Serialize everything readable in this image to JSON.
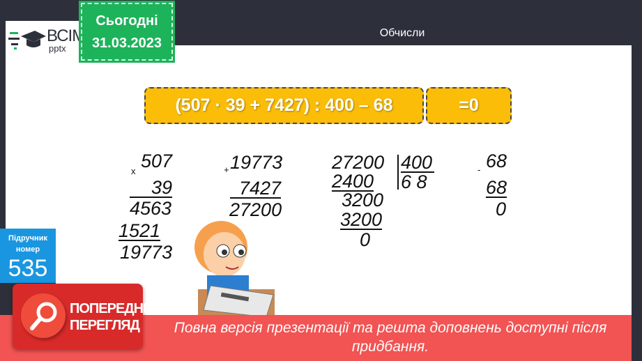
{
  "header": {
    "title": "Обчисли"
  },
  "logo": {
    "brand": "ВСІМ",
    "sub": "pptx"
  },
  "date_badge": {
    "label": "Сьогодні",
    "date": "31.03.2023"
  },
  "task": {
    "expression": "(507 · 39 + 7427) : 400 – 68",
    "answer": "=0"
  },
  "multiplication": {
    "sign": "x",
    "a": "507",
    "b": "39",
    "p1": "4563",
    "p2": "1521",
    "result": "19773"
  },
  "addition": {
    "sign": "+",
    "a": "19773",
    "b": "7427",
    "result": "27200"
  },
  "division": {
    "dividend": "27200",
    "divisor": "400",
    "quotient": "6 8",
    "s1": "2400",
    "r1": "3200",
    "s2": "3200",
    "remainder": "0"
  },
  "subtraction": {
    "sign": "-",
    "a": "68",
    "b": "68",
    "result": "0"
  },
  "textbook": {
    "label": "Підручник номер",
    "number": "535"
  },
  "preview": {
    "badge": "ПОПЕРЕДНІЙ ПЕРЕГЛЯД",
    "message": "Повна версія презентації та решта доповнень доступні після придбання.",
    "colors": {
      "band": "#f25353",
      "badge": "#d92a2a"
    }
  },
  "colors": {
    "accent": "#fbbd08",
    "dark": "#2d303b",
    "date": "#1db35a",
    "textbook": "#1a96e0"
  }
}
